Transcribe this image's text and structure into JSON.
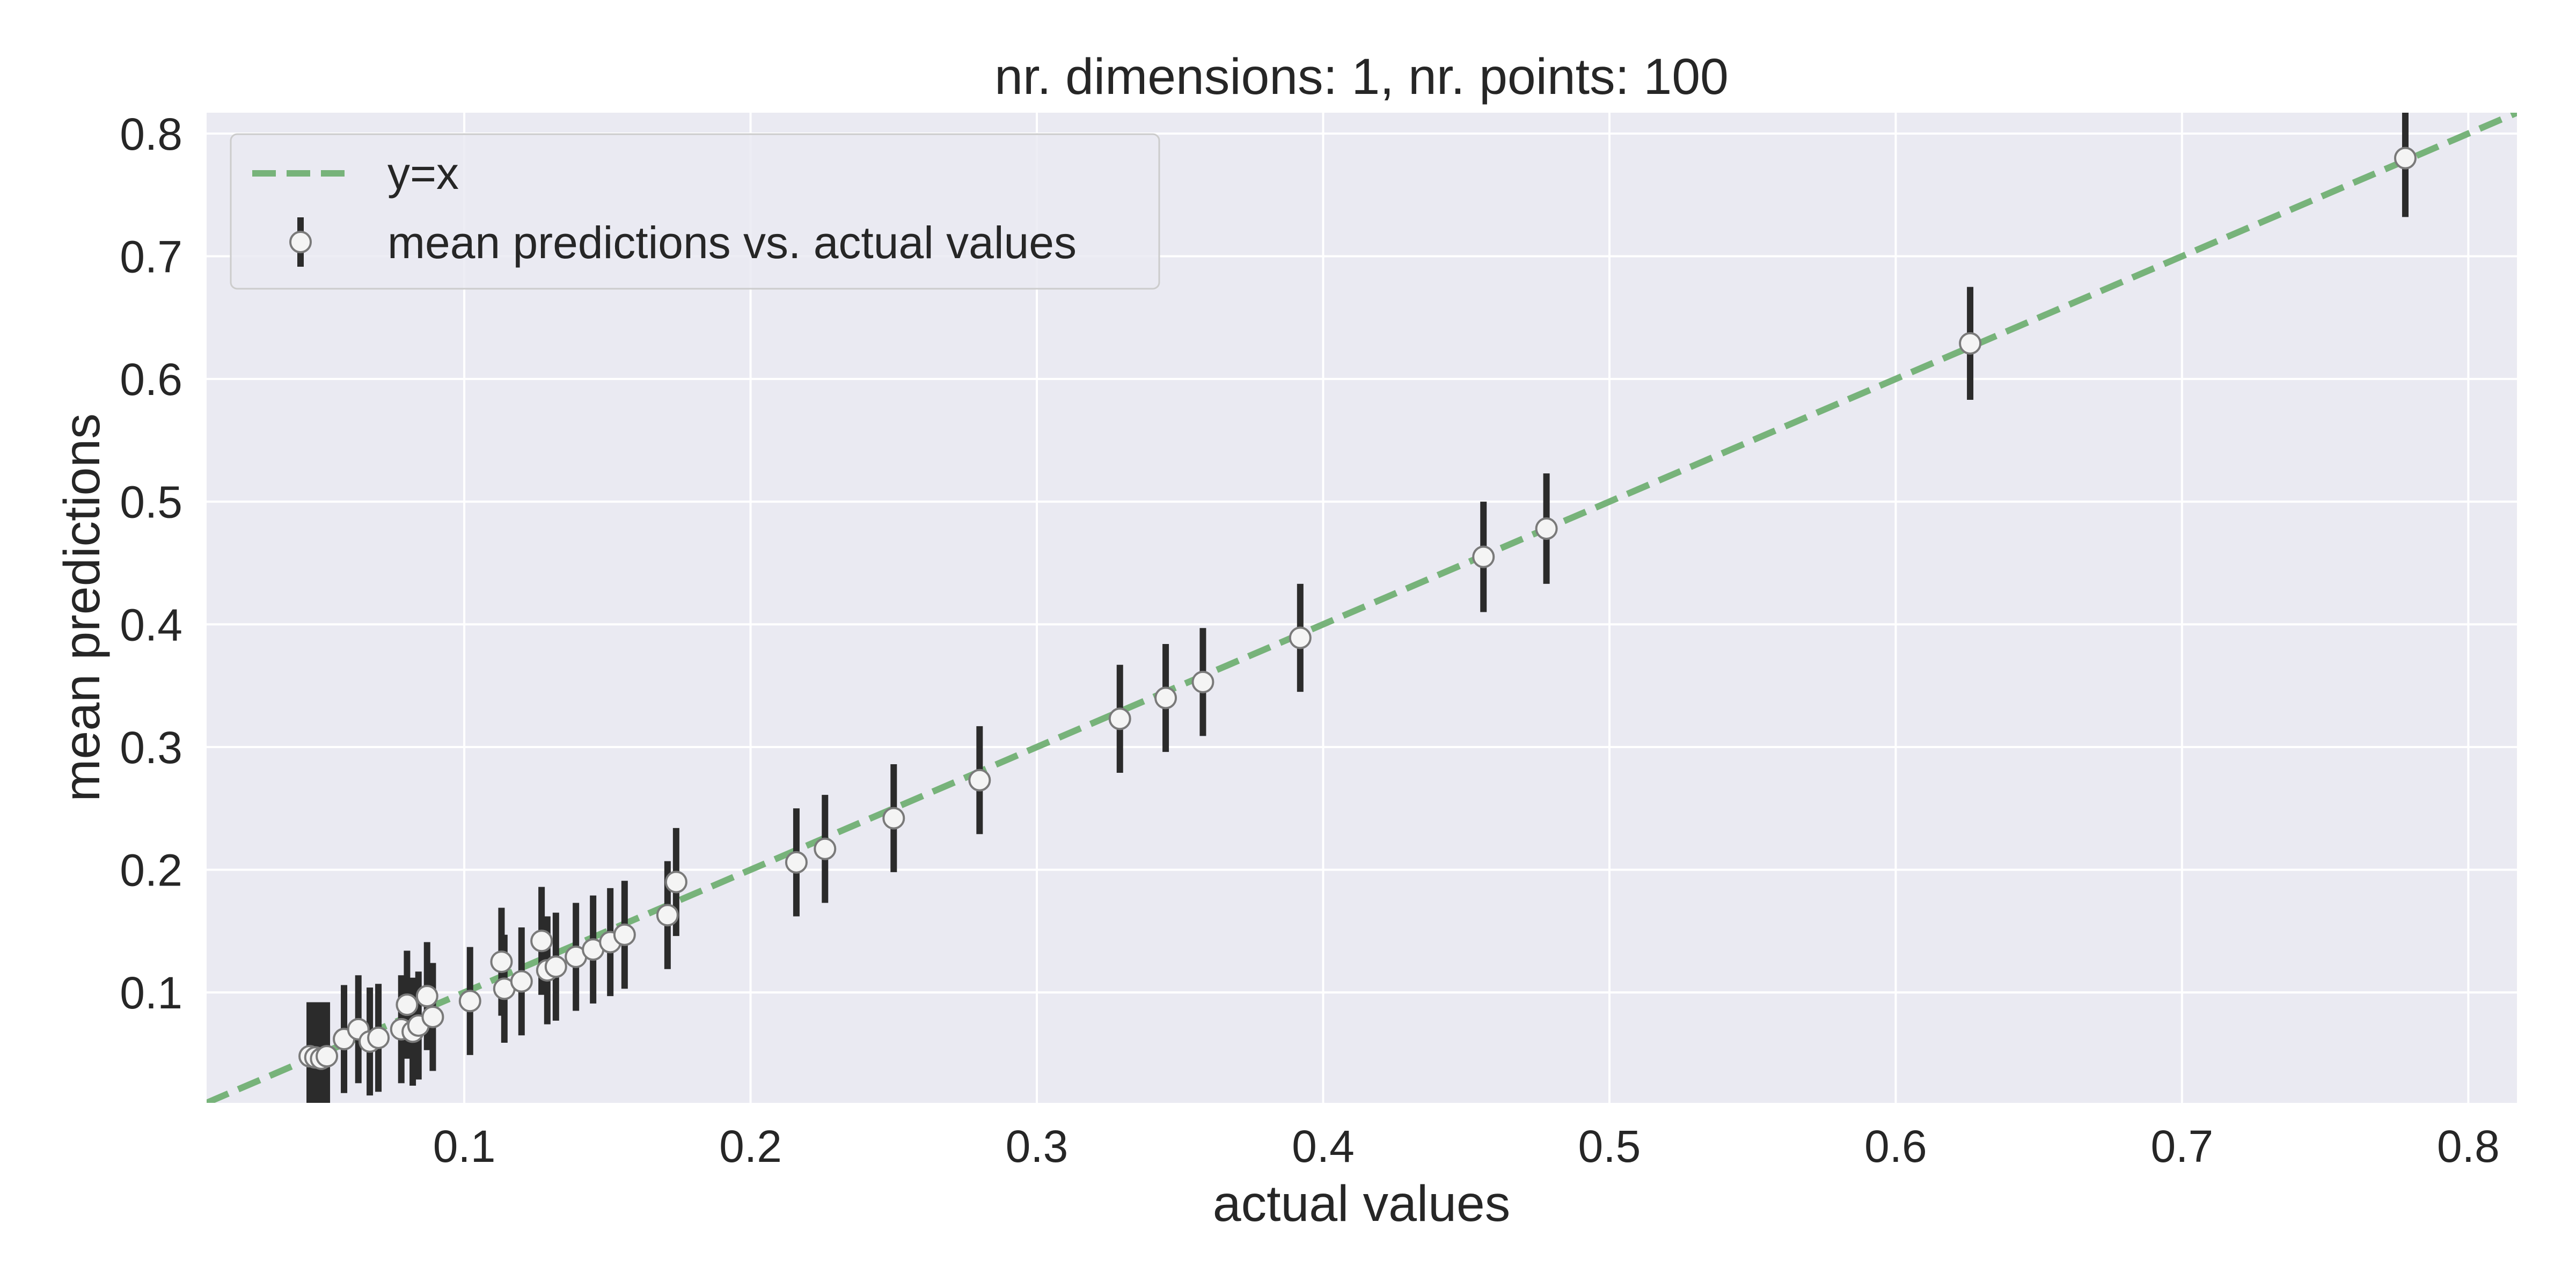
{
  "chart_data": {
    "type": "scatter",
    "title": "nr. dimensions: 1, nr. points: 100",
    "xlabel": "actual values",
    "ylabel": "mean predictions",
    "xlim": [
      0.01,
      0.817
    ],
    "ylim": [
      0.01,
      0.817
    ],
    "x_ticks": [
      0.1,
      0.2,
      0.3,
      0.4,
      0.5,
      0.6,
      0.7,
      0.8
    ],
    "y_ticks": [
      0.1,
      0.2,
      0.3,
      0.4,
      0.5,
      0.6,
      0.7,
      0.8
    ],
    "x_tick_labels": [
      "0.1",
      "0.2",
      "0.3",
      "0.4",
      "0.5",
      "0.6",
      "0.7",
      "0.8"
    ],
    "y_tick_labels": [
      "0.1",
      "0.2",
      "0.3",
      "0.4",
      "0.5",
      "0.6",
      "0.7",
      "0.8"
    ],
    "grid": true,
    "legend_position": "top-left",
    "colors": {
      "plot_background": "#eaeaf2",
      "grid": "#ffffff",
      "reference_line": "#77b37a",
      "error_bar": "#2b2b2b",
      "marker_fill": "#f4f4f4",
      "marker_edge": "#7a7a7a"
    },
    "series": [
      {
        "name": "y=x",
        "type": "line",
        "style": "dashed",
        "x": [
          0.01,
          0.817
        ],
        "y": [
          0.01,
          0.817
        ]
      },
      {
        "name": "mean predictions vs. actual values",
        "type": "errorbar",
        "points": [
          {
            "x": 0.046,
            "y": 0.048,
            "err": 0.044
          },
          {
            "x": 0.048,
            "y": 0.047,
            "err": 0.045
          },
          {
            "x": 0.05,
            "y": 0.046,
            "err": 0.046
          },
          {
            "x": 0.052,
            "y": 0.048,
            "err": 0.044
          },
          {
            "x": 0.058,
            "y": 0.062,
            "err": 0.044
          },
          {
            "x": 0.063,
            "y": 0.07,
            "err": 0.044
          },
          {
            "x": 0.067,
            "y": 0.06,
            "err": 0.044
          },
          {
            "x": 0.07,
            "y": 0.063,
            "err": 0.044
          },
          {
            "x": 0.078,
            "y": 0.07,
            "err": 0.044
          },
          {
            "x": 0.08,
            "y": 0.09,
            "err": 0.044
          },
          {
            "x": 0.082,
            "y": 0.068,
            "err": 0.044
          },
          {
            "x": 0.084,
            "y": 0.073,
            "err": 0.044
          },
          {
            "x": 0.087,
            "y": 0.097,
            "err": 0.044
          },
          {
            "x": 0.089,
            "y": 0.08,
            "err": 0.044
          },
          {
            "x": 0.102,
            "y": 0.093,
            "err": 0.044
          },
          {
            "x": 0.113,
            "y": 0.125,
            "err": 0.044
          },
          {
            "x": 0.114,
            "y": 0.103,
            "err": 0.044
          },
          {
            "x": 0.12,
            "y": 0.109,
            "err": 0.044
          },
          {
            "x": 0.127,
            "y": 0.142,
            "err": 0.044
          },
          {
            "x": 0.129,
            "y": 0.118,
            "err": 0.044
          },
          {
            "x": 0.132,
            "y": 0.121,
            "err": 0.044
          },
          {
            "x": 0.139,
            "y": 0.129,
            "err": 0.044
          },
          {
            "x": 0.145,
            "y": 0.135,
            "err": 0.044
          },
          {
            "x": 0.151,
            "y": 0.141,
            "err": 0.044
          },
          {
            "x": 0.156,
            "y": 0.147,
            "err": 0.044
          },
          {
            "x": 0.171,
            "y": 0.163,
            "err": 0.044
          },
          {
            "x": 0.174,
            "y": 0.19,
            "err": 0.044
          },
          {
            "x": 0.216,
            "y": 0.206,
            "err": 0.044
          },
          {
            "x": 0.226,
            "y": 0.217,
            "err": 0.044
          },
          {
            "x": 0.25,
            "y": 0.242,
            "err": 0.044
          },
          {
            "x": 0.28,
            "y": 0.273,
            "err": 0.044
          },
          {
            "x": 0.329,
            "y": 0.323,
            "err": 0.044
          },
          {
            "x": 0.345,
            "y": 0.34,
            "err": 0.044
          },
          {
            "x": 0.358,
            "y": 0.353,
            "err": 0.044
          },
          {
            "x": 0.392,
            "y": 0.389,
            "err": 0.044
          },
          {
            "x": 0.456,
            "y": 0.455,
            "err": 0.045
          },
          {
            "x": 0.478,
            "y": 0.478,
            "err": 0.045
          },
          {
            "x": 0.626,
            "y": 0.629,
            "err": 0.046
          },
          {
            "x": 0.778,
            "y": 0.78,
            "err": 0.048
          }
        ]
      }
    ]
  }
}
